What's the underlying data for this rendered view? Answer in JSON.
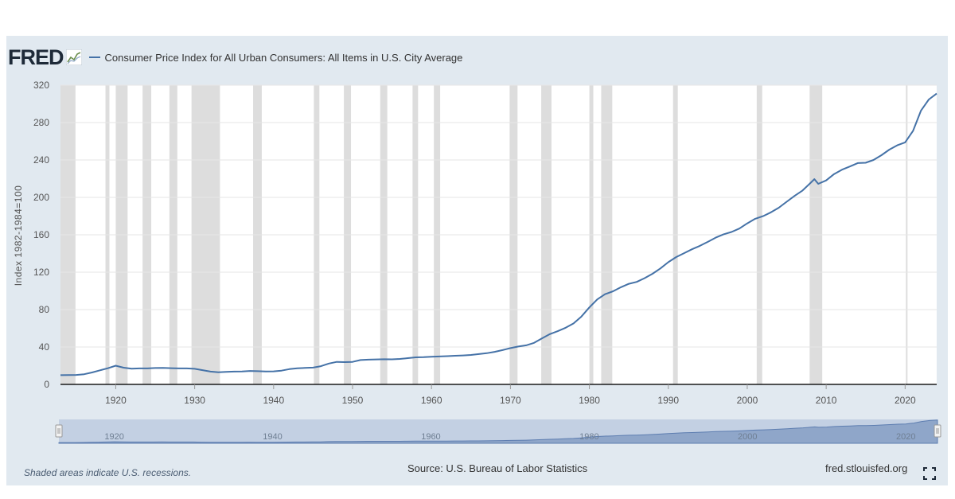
{
  "header": {
    "logo_text": "FRED",
    "legend_label": "Consumer Price Index for All Urban Consumers: All Items in U.S. City Average"
  },
  "footer": {
    "recession_note": "Shaded areas indicate U.S. recessions.",
    "source": "Source: U.S. Bureau of Labor Statistics",
    "url": "fred.stlouisfed.org"
  },
  "navigator": {
    "labels": [
      "1920",
      "1940",
      "1960",
      "1980",
      "2000",
      "2020"
    ]
  },
  "colors": {
    "line": "#4572a7",
    "recession": "#dddddd",
    "background": "#e1e9f0",
    "navigator_fill": "#8fa6c9"
  },
  "chart_data": {
    "type": "line",
    "title": "",
    "xlabel": "",
    "ylabel": "Index 1982-1984=100",
    "xlim": [
      1913,
      2024
    ],
    "ylim": [
      0,
      320
    ],
    "x_ticks": [
      1920,
      1930,
      1940,
      1950,
      1960,
      1970,
      1980,
      1990,
      2000,
      2010,
      2020
    ],
    "y_ticks": [
      0,
      40,
      80,
      120,
      160,
      200,
      240,
      280,
      320
    ],
    "grid": "horizontal",
    "legend_position": "top-left",
    "recessions": [
      [
        1913.0,
        1914.9
      ],
      [
        1918.7,
        1919.2
      ],
      [
        1920.0,
        1921.5
      ],
      [
        1923.4,
        1924.5
      ],
      [
        1926.8,
        1927.8
      ],
      [
        1929.6,
        1933.2
      ],
      [
        1937.4,
        1938.5
      ],
      [
        1945.1,
        1945.8
      ],
      [
        1948.9,
        1949.8
      ],
      [
        1953.5,
        1954.4
      ],
      [
        1957.6,
        1958.3
      ],
      [
        1960.3,
        1961.1
      ],
      [
        1969.9,
        1970.9
      ],
      [
        1973.9,
        1975.2
      ],
      [
        1980.0,
        1980.5
      ],
      [
        1981.5,
        1982.9
      ],
      [
        1990.6,
        1991.2
      ],
      [
        2001.2,
        2001.9
      ],
      [
        2007.9,
        2009.5
      ],
      [
        2020.1,
        2020.3
      ]
    ],
    "series": [
      {
        "name": "Consumer Price Index for All Urban Consumers: All Items in U.S. City Average",
        "x": [
          1913,
          1914,
          1915,
          1916,
          1917,
          1918,
          1919,
          1920,
          1921,
          1922,
          1923,
          1924,
          1925,
          1926,
          1927,
          1928,
          1929,
          1930,
          1931,
          1932,
          1933,
          1934,
          1935,
          1936,
          1937,
          1938,
          1939,
          1940,
          1941,
          1942,
          1943,
          1944,
          1945,
          1946,
          1947,
          1948,
          1949,
          1950,
          1951,
          1952,
          1953,
          1954,
          1955,
          1956,
          1957,
          1958,
          1959,
          1960,
          1961,
          1962,
          1963,
          1964,
          1965,
          1966,
          1967,
          1968,
          1969,
          1970,
          1971,
          1972,
          1973,
          1974,
          1975,
          1976,
          1977,
          1978,
          1979,
          1980,
          1981,
          1982,
          1983,
          1984,
          1985,
          1986,
          1987,
          1988,
          1989,
          1990,
          1991,
          1992,
          1993,
          1994,
          1995,
          1996,
          1997,
          1998,
          1999,
          2000,
          2001,
          2002,
          2003,
          2004,
          2005,
          2006,
          2007,
          2008,
          2008.5,
          2009,
          2010,
          2011,
          2012,
          2013,
          2014,
          2015,
          2016,
          2017,
          2018,
          2019,
          2020,
          2021,
          2022,
          2023,
          2024
        ],
        "values": [
          9.9,
          10.0,
          10.1,
          10.9,
          12.8,
          15.1,
          17.3,
          20.0,
          17.9,
          16.8,
          17.1,
          17.1,
          17.5,
          17.7,
          17.4,
          17.1,
          17.1,
          16.7,
          15.2,
          13.7,
          13.0,
          13.4,
          13.7,
          13.9,
          14.4,
          14.1,
          13.9,
          14.0,
          14.7,
          16.3,
          17.3,
          17.6,
          18.0,
          19.5,
          22.3,
          24.1,
          23.8,
          24.1,
          26.0,
          26.5,
          26.7,
          26.9,
          26.8,
          27.2,
          28.1,
          28.9,
          29.1,
          29.6,
          29.9,
          30.2,
          30.6,
          31.0,
          31.5,
          32.4,
          33.4,
          34.8,
          36.7,
          38.8,
          40.5,
          41.8,
          44.4,
          49.3,
          53.8,
          56.9,
          60.6,
          65.2,
          72.6,
          82.4,
          90.9,
          96.5,
          99.6,
          103.9,
          107.6,
          109.6,
          113.6,
          118.3,
          124.0,
          130.7,
          136.2,
          140.3,
          144.5,
          148.2,
          152.4,
          156.9,
          160.5,
          163.0,
          166.6,
          172.2,
          177.1,
          179.9,
          184.0,
          188.9,
          195.3,
          201.6,
          207.3,
          215.3,
          219.5,
          214.5,
          218.1,
          224.9,
          229.6,
          233.0,
          236.7,
          237.0,
          240.0,
          245.1,
          251.1,
          255.7,
          258.8,
          271.0,
          292.7,
          304.7,
          311.0
        ]
      }
    ]
  }
}
